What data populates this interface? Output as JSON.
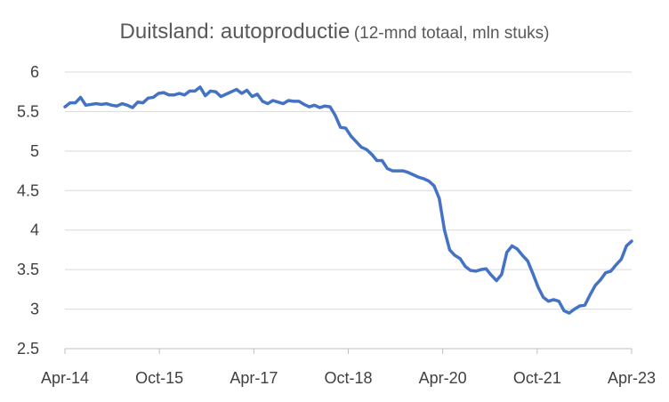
{
  "chart_data": {
    "type": "line",
    "title": "Duitsland: autoproductie",
    "subtitle": "(12-mnd totaal, mln stuks)",
    "xlabel": "",
    "ylabel": "",
    "ylim": [
      2.5,
      6
    ],
    "yticks": [
      "2.5",
      "3",
      "3.5",
      "4",
      "4.5",
      "5",
      "5.5",
      "6"
    ],
    "xticks": [
      "Apr-14",
      "Oct-15",
      "Apr-17",
      "Oct-18",
      "Apr-20",
      "Oct-21",
      "Apr-23"
    ],
    "grid": "horizontal",
    "legend": "none",
    "line_color": "#4472C4",
    "grid_color": "#D9D9D9",
    "x_start": "Apr-14",
    "x_end": "Apr-23",
    "values": [
      5.56,
      5.61,
      5.61,
      5.68,
      5.58,
      5.59,
      5.6,
      5.59,
      5.6,
      5.58,
      5.57,
      5.6,
      5.58,
      5.55,
      5.62,
      5.61,
      5.67,
      5.68,
      5.73,
      5.74,
      5.71,
      5.71,
      5.73,
      5.71,
      5.76,
      5.76,
      5.81,
      5.7,
      5.76,
      5.75,
      5.69,
      5.72,
      5.75,
      5.78,
      5.73,
      5.77,
      5.69,
      5.72,
      5.63,
      5.6,
      5.64,
      5.62,
      5.6,
      5.64,
      5.63,
      5.63,
      5.59,
      5.56,
      5.58,
      5.55,
      5.57,
      5.56,
      5.45,
      5.3,
      5.29,
      5.19,
      5.12,
      5.05,
      5.02,
      4.96,
      4.88,
      4.88,
      4.78,
      4.75,
      4.75,
      4.75,
      4.73,
      4.7,
      4.67,
      4.65,
      4.62,
      4.56,
      4.4,
      4.0,
      3.75,
      3.68,
      3.64,
      3.54,
      3.49,
      3.48,
      3.5,
      3.51,
      3.43,
      3.36,
      3.44,
      3.72,
      3.8,
      3.76,
      3.68,
      3.61,
      3.45,
      3.28,
      3.15,
      3.1,
      3.12,
      3.1,
      2.98,
      2.95,
      3.0,
      3.04,
      3.05,
      3.18,
      3.3,
      3.37,
      3.46,
      3.48,
      3.56,
      3.63,
      3.8,
      3.86
    ]
  }
}
